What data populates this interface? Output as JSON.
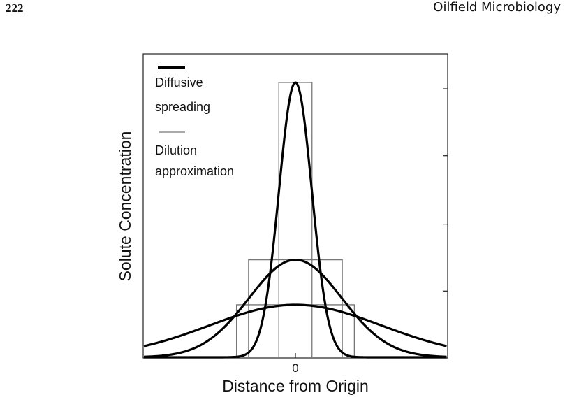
{
  "header": {
    "page_number": "222",
    "book_title": "Oilfield Microbiology"
  },
  "chart_data": {
    "type": "line",
    "title": "",
    "xlabel": "Distance from Origin",
    "ylabel": "Solute Concentration",
    "x_ticks": [
      0
    ],
    "x_tick_labels": [
      "0"
    ],
    "xlim": [
      -1,
      1
    ],
    "ylim": [
      0,
      1
    ],
    "grid": false,
    "legend": {
      "placement": "top-left",
      "entries": [
        {
          "label_lines": [
            "Diffusive",
            "spreading"
          ],
          "style": "thick"
        },
        {
          "label_lines": [
            "Dilution",
            "approximation"
          ],
          "style": "thin"
        }
      ]
    },
    "series": [
      {
        "style": "thick",
        "kind": "gaussian",
        "peak": 0.995,
        "sigma": 0.108
      },
      {
        "style": "thick",
        "kind": "gaussian",
        "peak": 0.353,
        "sigma": 0.305
      },
      {
        "style": "thick",
        "kind": "gaussian",
        "peak": 0.19,
        "sigma": 0.565
      },
      {
        "style": "thin",
        "kind": "rectangle",
        "x_range": [
          -0.109,
          0.109
        ],
        "height": 0.995
      },
      {
        "style": "thin",
        "kind": "rectangle",
        "x_range": [
          -0.308,
          0.308
        ],
        "height": 0.353
      },
      {
        "style": "thin",
        "kind": "rectangle",
        "x_range": [
          -0.387,
          0.387
        ],
        "height": 0.19
      }
    ],
    "colors": {
      "thick": "#000000",
      "thin": "#777777",
      "axes": "#222222"
    }
  }
}
